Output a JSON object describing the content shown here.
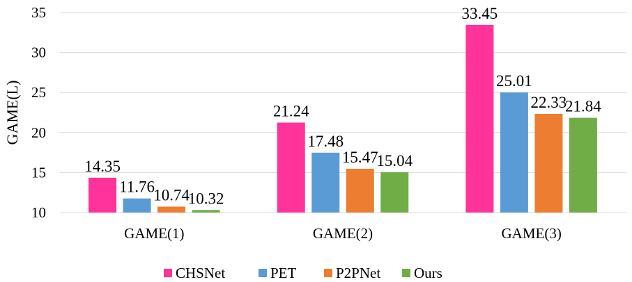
{
  "chart_data": {
    "type": "bar",
    "categories": [
      "GAME(1)",
      "GAME(2)",
      "GAME(3)"
    ],
    "series": [
      {
        "name": "CHSNet",
        "color": "#FF3399",
        "values": [
          14.35,
          21.24,
          33.45
        ]
      },
      {
        "name": "PET",
        "color": "#5B9BD5",
        "values": [
          11.76,
          17.48,
          25.01
        ]
      },
      {
        "name": "P2PNet",
        "color": "#ED7D31",
        "values": [
          10.74,
          15.47,
          22.33
        ]
      },
      {
        "name": "Ours",
        "color": "#70AD47",
        "values": [
          10.32,
          15.04,
          21.84
        ]
      }
    ],
    "ylabel": "GAME(L)",
    "ylim": [
      10,
      35
    ],
    "yticks": [
      10,
      15,
      20,
      25,
      30,
      35
    ],
    "grid": true,
    "legend": "bottom"
  }
}
